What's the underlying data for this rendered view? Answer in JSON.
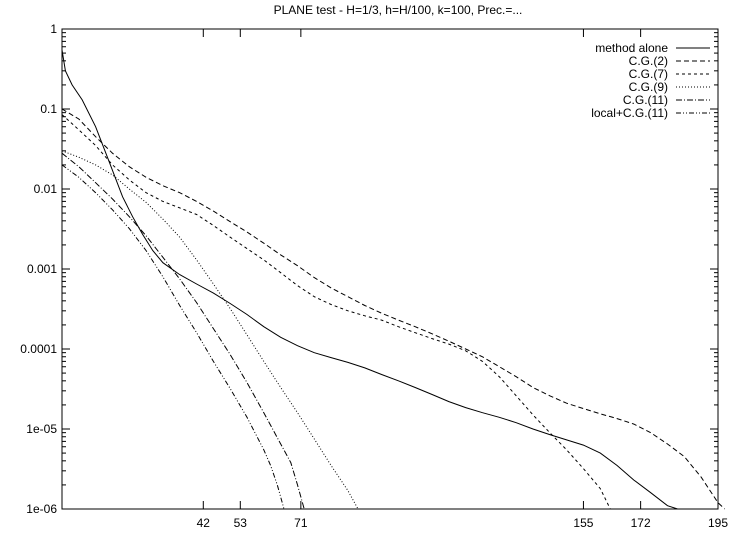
{
  "chart_data": {
    "type": "line",
    "title": "PLANE test - H=1/3, h=H/100, k=100, Prec.=...",
    "xlabel": "",
    "ylabel": "",
    "yscale": "log",
    "xlim": [
      0,
      195
    ],
    "ylim": [
      1e-06,
      1
    ],
    "y_ticks": [
      "1",
      "0.1",
      "0.01",
      "0.001",
      "0.0001",
      "1e-05",
      "1e-06"
    ],
    "x_ticks": [
      {
        "value": 42,
        "label": "42"
      },
      {
        "value": 53,
        "label": "53"
      },
      {
        "value": 71,
        "label": "71"
      },
      {
        "value": 155,
        "label": "155"
      },
      {
        "value": 172,
        "label": "172"
      },
      {
        "value": 195,
        "label": "195"
      }
    ],
    "legend_position": "top-right",
    "series": [
      {
        "name": "method alone",
        "dash": "solid",
        "points": [
          [
            0,
            0.55
          ],
          [
            1,
            0.3
          ],
          [
            3,
            0.2
          ],
          [
            6,
            0.13
          ],
          [
            10,
            0.06
          ],
          [
            14,
            0.022
          ],
          [
            18,
            0.008
          ],
          [
            21,
            0.0045
          ],
          [
            24,
            0.0027
          ],
          [
            27,
            0.0017
          ],
          [
            30,
            0.0012
          ],
          [
            35,
            0.00085
          ],
          [
            40,
            0.00065
          ],
          [
            45,
            0.0005
          ],
          [
            50,
            0.00037
          ],
          [
            55,
            0.00027
          ],
          [
            60,
            0.00019
          ],
          [
            65,
            0.00014
          ],
          [
            70,
            0.00011
          ],
          [
            75,
            9e-05
          ],
          [
            80,
            7.8e-05
          ],
          [
            85,
            6.8e-05
          ],
          [
            90,
            5.8e-05
          ],
          [
            95,
            4.8e-05
          ],
          [
            100,
            4e-05
          ],
          [
            105,
            3.3e-05
          ],
          [
            110,
            2.7e-05
          ],
          [
            115,
            2.2e-05
          ],
          [
            120,
            1.85e-05
          ],
          [
            125,
            1.6e-05
          ],
          [
            130,
            1.4e-05
          ],
          [
            135,
            1.2e-05
          ],
          [
            140,
            1e-05
          ],
          [
            145,
            8.5e-06
          ],
          [
            150,
            7.3e-06
          ],
          [
            155,
            6.3e-06
          ],
          [
            160,
            5e-06
          ],
          [
            165,
            3.5e-06
          ],
          [
            170,
            2.3e-06
          ],
          [
            175,
            1.6e-06
          ],
          [
            180,
            1.1e-06
          ],
          [
            183,
            1e-06
          ]
        ]
      },
      {
        "name": "C.G.(2)",
        "dash": "5,3",
        "points": [
          [
            0,
            0.1
          ],
          [
            5,
            0.075
          ],
          [
            10,
            0.045
          ],
          [
            15,
            0.028
          ],
          [
            20,
            0.019
          ],
          [
            25,
            0.014
          ],
          [
            30,
            0.011
          ],
          [
            35,
            0.009
          ],
          [
            40,
            0.007
          ],
          [
            45,
            0.0053
          ],
          [
            50,
            0.0039
          ],
          [
            55,
            0.0029
          ],
          [
            60,
            0.0021
          ],
          [
            65,
            0.0015
          ],
          [
            70,
            0.0011
          ],
          [
            75,
            0.00078
          ],
          [
            80,
            0.00058
          ],
          [
            85,
            0.00045
          ],
          [
            90,
            0.00035
          ],
          [
            95,
            0.00028
          ],
          [
            100,
            0.00023
          ],
          [
            105,
            0.00019
          ],
          [
            110,
            0.000155
          ],
          [
            115,
            0.000125
          ],
          [
            120,
            0.0001
          ],
          [
            125,
            8e-05
          ],
          [
            130,
            6e-05
          ],
          [
            135,
            4.5e-05
          ],
          [
            140,
            3.3e-05
          ],
          [
            145,
            2.6e-05
          ],
          [
            150,
            2.1e-05
          ],
          [
            155,
            1.8e-05
          ],
          [
            160,
            1.55e-05
          ],
          [
            165,
            1.35e-05
          ],
          [
            170,
            1.15e-05
          ],
          [
            175,
            9e-06
          ],
          [
            180,
            6.5e-06
          ],
          [
            185,
            4.5e-06
          ],
          [
            190,
            2.5e-06
          ],
          [
            195,
            1.2e-06
          ],
          [
            197,
            1e-06
          ]
        ]
      },
      {
        "name": "C.G.(7)",
        "dash": "3,3",
        "points": [
          [
            0,
            0.085
          ],
          [
            5,
            0.055
          ],
          [
            10,
            0.035
          ],
          [
            15,
            0.02
          ],
          [
            20,
            0.013
          ],
          [
            25,
            0.009
          ],
          [
            30,
            0.007
          ],
          [
            35,
            0.0058
          ],
          [
            40,
            0.0048
          ],
          [
            45,
            0.0035
          ],
          [
            50,
            0.0025
          ],
          [
            55,
            0.0018
          ],
          [
            60,
            0.0013
          ],
          [
            65,
            0.0009
          ],
          [
            70,
            0.00062
          ],
          [
            75,
            0.00045
          ],
          [
            80,
            0.00036
          ],
          [
            85,
            0.0003
          ],
          [
            90,
            0.00026
          ],
          [
            95,
            0.00023
          ],
          [
            100,
            0.00019
          ],
          [
            105,
            0.00016
          ],
          [
            110,
            0.000135
          ],
          [
            115,
            0.000115
          ],
          [
            120,
            9.5e-05
          ],
          [
            125,
            7e-05
          ],
          [
            130,
            4.5e-05
          ],
          [
            135,
            2.6e-05
          ],
          [
            140,
            1.5e-05
          ],
          [
            145,
            9e-06
          ],
          [
            150,
            5.5e-06
          ],
          [
            155,
            3.2e-06
          ],
          [
            160,
            1.8e-06
          ],
          [
            163,
            1e-06
          ]
        ]
      },
      {
        "name": "C.G.(9)",
        "dash": "1,2",
        "points": [
          [
            0,
            0.03
          ],
          [
            5,
            0.025
          ],
          [
            10,
            0.02
          ],
          [
            15,
            0.015
          ],
          [
            20,
            0.01
          ],
          [
            25,
            0.0068
          ],
          [
            30,
            0.0042
          ],
          [
            35,
            0.0025
          ],
          [
            40,
            0.0013
          ],
          [
            45,
            0.00065
          ],
          [
            50,
            0.00032
          ],
          [
            55,
            0.00015
          ],
          [
            60,
            7e-05
          ],
          [
            65,
            3.3e-05
          ],
          [
            70,
            1.6e-05
          ],
          [
            75,
            7.5e-06
          ],
          [
            80,
            3.5e-06
          ],
          [
            85,
            1.7e-06
          ],
          [
            88,
            1e-06
          ]
        ]
      },
      {
        "name": "C.G.(11)",
        "dash": "6,2,1,2",
        "points": [
          [
            0,
            0.028
          ],
          [
            5,
            0.019
          ],
          [
            10,
            0.012
          ],
          [
            15,
            0.0075
          ],
          [
            20,
            0.0045
          ],
          [
            25,
            0.0026
          ],
          [
            30,
            0.0014
          ],
          [
            35,
            0.00075
          ],
          [
            40,
            0.00038
          ],
          [
            45,
            0.00018
          ],
          [
            50,
            8.5e-05
          ],
          [
            55,
            3.8e-05
          ],
          [
            60,
            1.6e-05
          ],
          [
            65,
            6.5e-06
          ],
          [
            68,
            3.8e-06
          ],
          [
            70,
            2e-06
          ],
          [
            72,
            1e-06
          ]
        ]
      },
      {
        "name": "local+C.G.(11)",
        "dash": "5,2,1,2,1,2",
        "points": [
          [
            0,
            0.02
          ],
          [
            5,
            0.014
          ],
          [
            10,
            0.009
          ],
          [
            15,
            0.0055
          ],
          [
            20,
            0.0032
          ],
          [
            25,
            0.0017
          ],
          [
            30,
            0.0008
          ],
          [
            35,
            0.00035
          ],
          [
            40,
            0.00016
          ],
          [
            45,
            7e-05
          ],
          [
            50,
            3.2e-05
          ],
          [
            55,
            1.4e-05
          ],
          [
            60,
            5.5e-06
          ],
          [
            62,
            3.5e-06
          ],
          [
            64,
            2e-06
          ],
          [
            66,
            1e-06
          ]
        ]
      }
    ]
  }
}
